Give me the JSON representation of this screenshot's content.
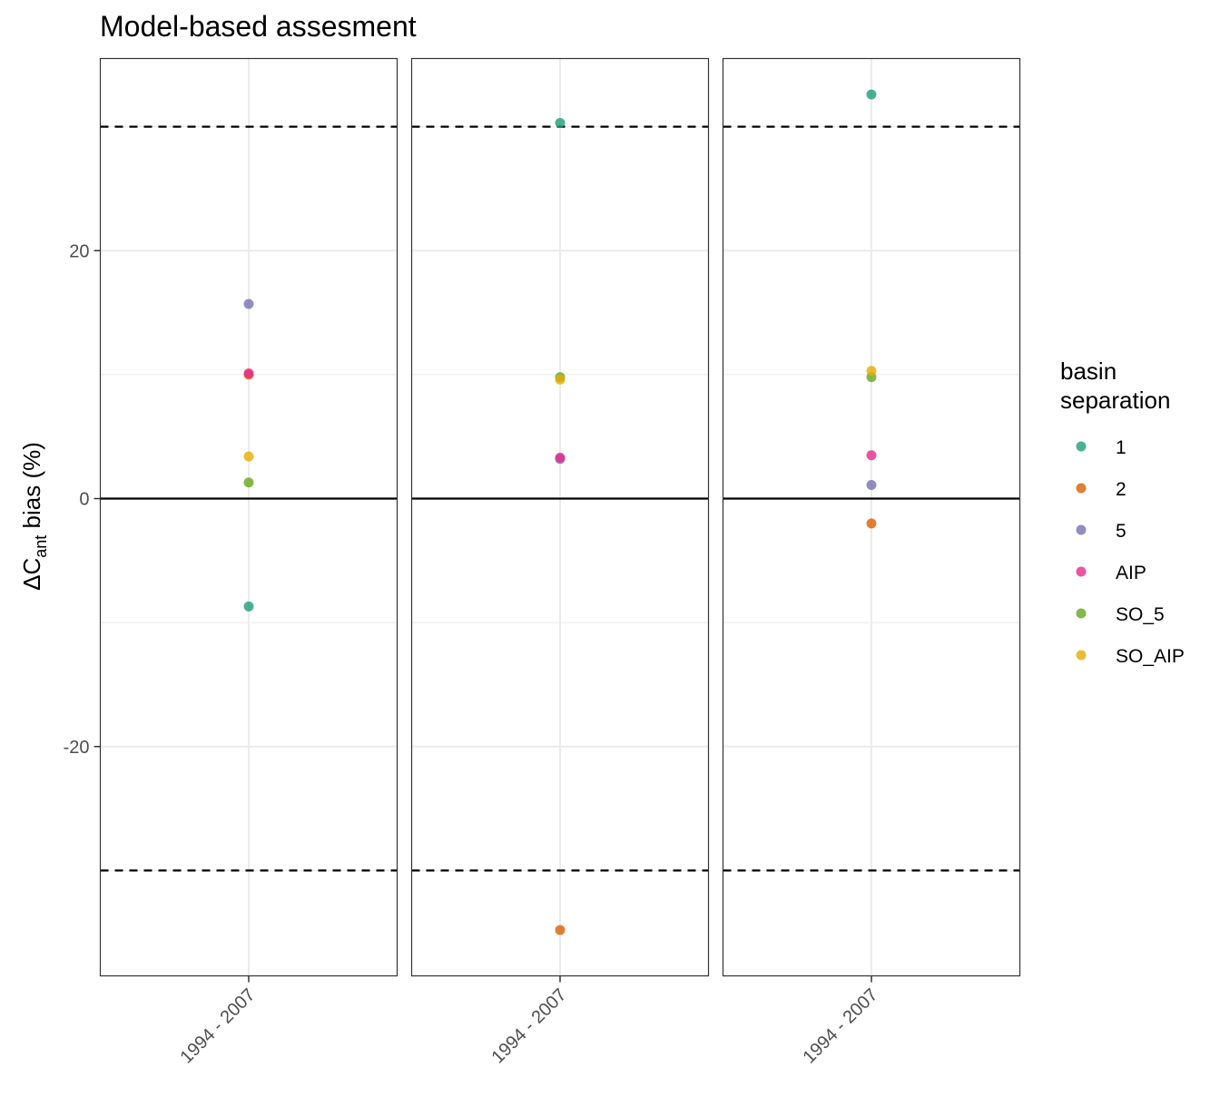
{
  "chart_data": {
    "type": "scatter",
    "title": "Model-based assesment",
    "ylabel": {
      "prefix": "ΔC",
      "subscript": "ant",
      "suffix": " bias (%)"
    },
    "ylim": [
      -38.5,
      35.5
    ],
    "y_ticks": [
      -20,
      0,
      20
    ],
    "y_tick_labels": [
      "-20",
      "0",
      "20"
    ],
    "grid": true,
    "reference_lines": [
      {
        "y": 0,
        "style": "solid"
      },
      {
        "y": 30,
        "style": "dashed"
      },
      {
        "y": -30,
        "style": "dashed"
      }
    ],
    "legend": {
      "title_lines": [
        "basin",
        "separation"
      ],
      "placement": "right",
      "entries": [
        {
          "label": "1",
          "color": "#1B9E77"
        },
        {
          "label": "2",
          "color": "#D95F02"
        },
        {
          "label": "5",
          "color": "#7570B3"
        },
        {
          "label": "AIP",
          "color": "#E7298A"
        },
        {
          "label": "SO_5",
          "color": "#66A61E"
        },
        {
          "label": "SO_AIP",
          "color": "#E6AB02"
        }
      ]
    },
    "panels": [
      {
        "x_label": "1994 - 2007",
        "points": [
          {
            "series": "1",
            "y": -8.7
          },
          {
            "series": "2",
            "y": 10.0
          },
          {
            "series": "5",
            "y": 15.7
          },
          {
            "series": "AIP",
            "y": 10.1
          },
          {
            "series": "SO_5",
            "y": 1.3
          },
          {
            "series": "SO_AIP",
            "y": 3.4
          }
        ]
      },
      {
        "x_label": "1994 - 2007",
        "points": [
          {
            "series": "1",
            "y": 30.3
          },
          {
            "series": "2",
            "y": -34.8
          },
          {
            "series": "5",
            "y": 3.2
          },
          {
            "series": "AIP",
            "y": 3.3
          },
          {
            "series": "SO_5",
            "y": 9.8
          },
          {
            "series": "SO_AIP",
            "y": 9.6
          }
        ]
      },
      {
        "x_label": "1994 - 2007",
        "points": [
          {
            "series": "1",
            "y": 32.6
          },
          {
            "series": "2",
            "y": -2.0
          },
          {
            "series": "5",
            "y": 1.1
          },
          {
            "series": "AIP",
            "y": 3.5
          },
          {
            "series": "SO_5",
            "y": 9.8
          },
          {
            "series": "SO_AIP",
            "y": 10.3
          }
        ]
      }
    ]
  }
}
